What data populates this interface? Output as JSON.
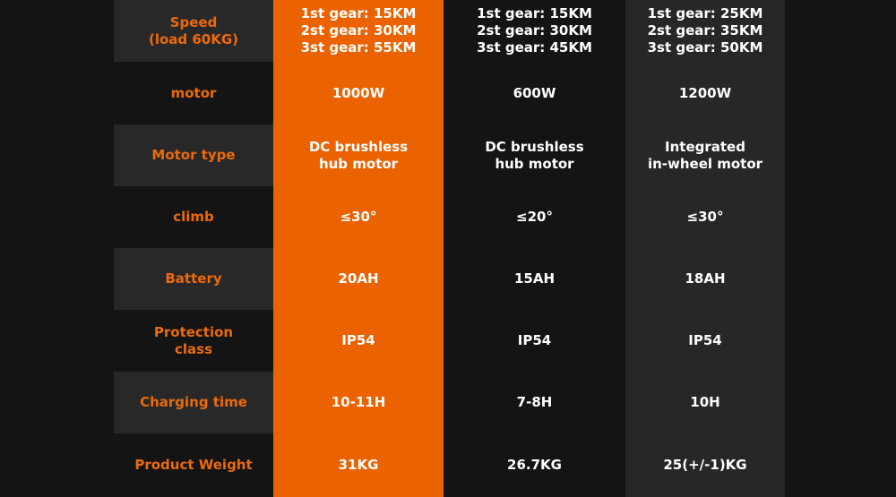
{
  "colors": {
    "accent": "#ea6300",
    "label": "#ec6a0a",
    "background": "#141414",
    "stripe": "#282828"
  },
  "rows": [
    {
      "label": "Speed\n(load 60KG)",
      "values": [
        "1st gear: 15KM\n2st gear: 30KM\n3st gear: 55KM",
        "1st gear: 15KM\n2st gear: 30KM\n3st gear: 45KM",
        "1st gear: 25KM\n2st gear: 35KM\n3st gear: 50KM"
      ]
    },
    {
      "label": "motor",
      "values": [
        "1000W",
        "600W",
        "1200W"
      ]
    },
    {
      "label": "Motor type",
      "values": [
        "DC brushless\nhub motor",
        "DC brushless\nhub motor",
        "Integrated\nin-wheel motor"
      ]
    },
    {
      "label": "climb",
      "values": [
        "≤30°",
        "≤20°",
        "≤30°"
      ]
    },
    {
      "label": "Battery",
      "values": [
        "20AH",
        "15AH",
        "18AH"
      ]
    },
    {
      "label": "Protection\nclass",
      "values": [
        "IP54",
        "IP54",
        "IP54"
      ]
    },
    {
      "label": "Charging time",
      "values": [
        "10-11H",
        "7-8H",
        "10H"
      ]
    },
    {
      "label": "Product Weight",
      "values": [
        "31KG",
        "26.7KG",
        "25(+/-1)KG"
      ]
    }
  ]
}
